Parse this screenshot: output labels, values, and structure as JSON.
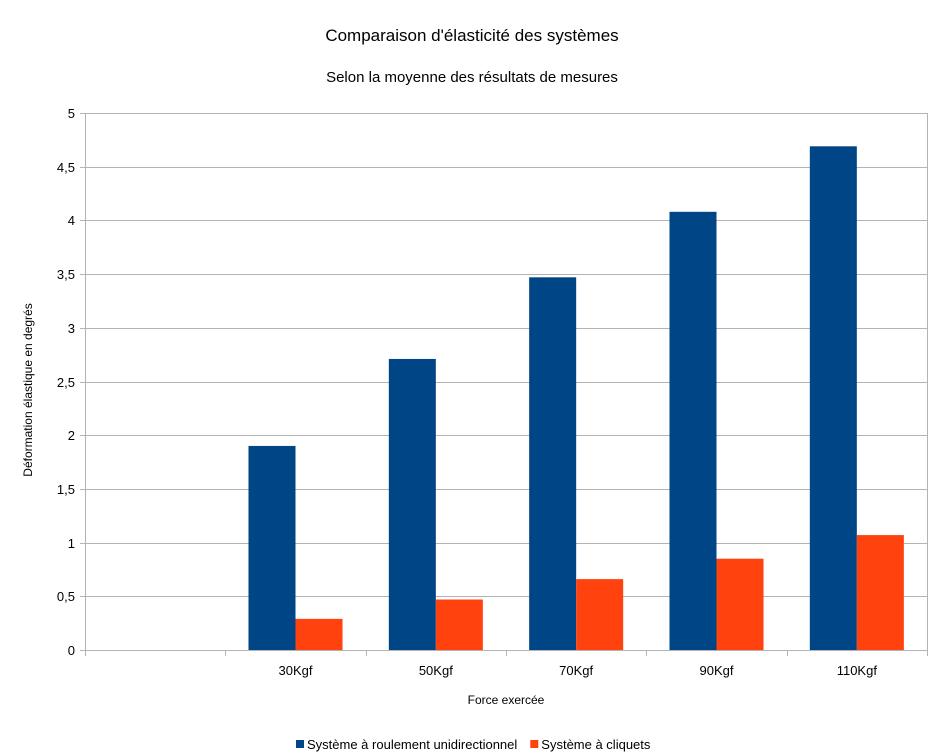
{
  "chart_data": {
    "type": "bar",
    "title": "Comparaison d'élasticité des systèmes",
    "subtitle": "Selon la moyenne des résultats de mesures",
    "xlabel": "Force exercée",
    "ylabel": "Déformation élastique en degrés",
    "categories": [
      "",
      "30Kgf",
      "50Kgf",
      "70Kgf",
      "90Kgf",
      "110Kgf"
    ],
    "series": [
      {
        "name": "Système à roulement unidirectionnel",
        "color": "#004586",
        "values": [
          null,
          1.9,
          2.71,
          3.47,
          4.08,
          4.69
        ]
      },
      {
        "name": "Système à cliquets",
        "color": "#ff420e",
        "values": [
          null,
          0.29,
          0.47,
          0.66,
          0.85,
          1.07
        ]
      }
    ],
    "ylim": [
      0,
      5
    ],
    "yticks": [
      "0",
      "0,5",
      "1",
      "1,5",
      "2",
      "2,5",
      "3",
      "3,5",
      "4",
      "4,5",
      "5"
    ],
    "ytick_values": [
      0,
      0.5,
      1,
      1.5,
      2,
      2.5,
      3,
      3.5,
      4,
      4.5,
      5
    ],
    "grid": true,
    "legend_position": "bottom"
  }
}
